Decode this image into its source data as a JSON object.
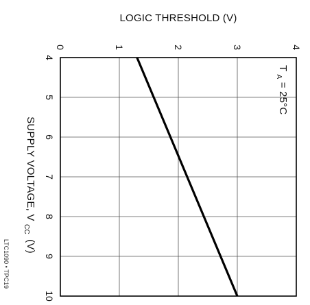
{
  "chart_data": {
    "type": "line",
    "title": "LOGIC THRESHOLD (V)",
    "xlabel": "SUPPLY VOLTAGE, V",
    "xlabel_subscript": "CC",
    "xlabel_unit": "(V)",
    "ylabel": "LOGIC THRESHOLD (V)",
    "xlim": [
      4,
      10
    ],
    "ylim": [
      0,
      4
    ],
    "x_ticks": [
      "4",
      "5",
      "6",
      "7",
      "8",
      "9",
      "10"
    ],
    "y_ticks": [
      "0",
      "1",
      "2",
      "3",
      "4"
    ],
    "grid": true,
    "orientation": "rotated 90 degrees clockwise",
    "annotation": {
      "main": "T",
      "subscript": "A",
      "rest": " = 25°C"
    },
    "series": [
      {
        "x": [
          4,
          10
        ],
        "y": [
          1.3,
          3.0
        ]
      }
    ],
    "figure_code": "LTC1090 • TPC19"
  }
}
